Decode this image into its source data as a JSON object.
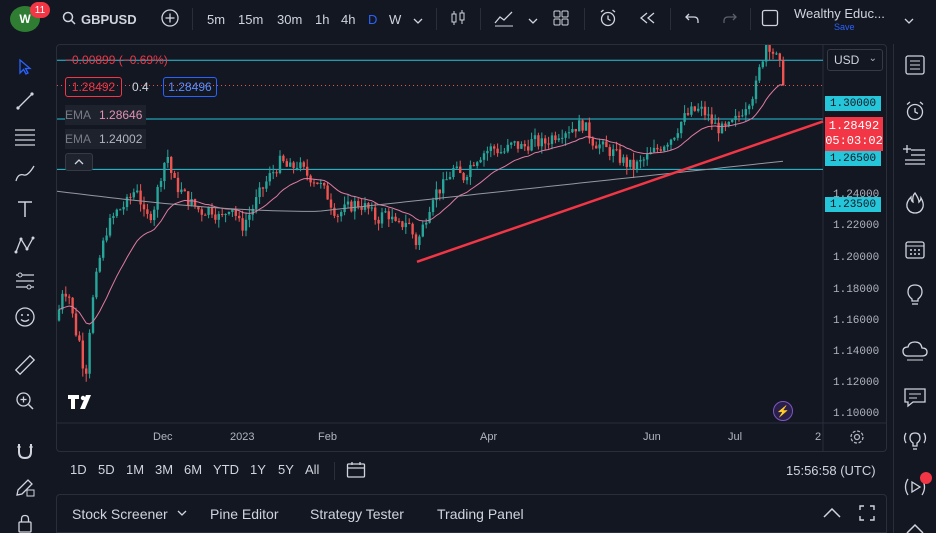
{
  "header": {
    "badge_count": "11",
    "symbol": "GBPUSD",
    "intervals": [
      "5m",
      "15m",
      "30m",
      "1h",
      "4h",
      "D",
      "W"
    ],
    "active_interval": "D",
    "account_name": "Wealthy Educ...",
    "account_action": "Save"
  },
  "legend": {
    "change": "−0.00899 (−0.69%)",
    "bid": "1.28492",
    "spread": "0.4",
    "ask": "1.28496",
    "ema1_label": "EMA",
    "ema1_value": "1.28646",
    "ema2_label": "EMA",
    "ema2_value": "1.24002"
  },
  "price_axis": {
    "currency": "USD",
    "ticks": [
      "1.24000",
      "1.22000",
      "1.20000",
      "1.18000",
      "1.16000",
      "1.14000",
      "1.12000",
      "1.10000"
    ],
    "current_price": "1.28492",
    "countdown": "05:03:02",
    "levels": [
      "1.30000",
      "1.26500",
      "1.23500"
    ]
  },
  "time_axis": {
    "ticks": [
      "Dec",
      "2023",
      "Feb",
      "Apr",
      "Jun",
      "Jul",
      "2"
    ]
  },
  "range_bar": {
    "ranges": [
      "1D",
      "5D",
      "1M",
      "3M",
      "6M",
      "YTD",
      "1Y",
      "5Y",
      "All"
    ],
    "clock": "15:56:58 (UTC)"
  },
  "bottom_panel": {
    "tabs": [
      "Stock Screener",
      "Pine Editor",
      "Strategy Tester",
      "Trading Panel"
    ]
  },
  "colors": {
    "up": "#26a69a",
    "down": "#ef5350",
    "ema_fast": "#e07ba0",
    "ema_slow": "#9598a1",
    "level": "#26c6da",
    "trendline": "#f23645"
  },
  "chart_data": {
    "type": "candlestick",
    "y_range": [
      1.09,
      1.315
    ],
    "horizontal_levels": [
      1.3,
      1.265,
      1.235
    ],
    "trendline": {
      "from": [
        "Mar 8",
        1.18
      ],
      "to": [
        "Jul 31",
        1.26
      ]
    },
    "last_close": 1.28492,
    "ema_fast_last": 1.28646,
    "ema_slow_last": 1.24002
  }
}
